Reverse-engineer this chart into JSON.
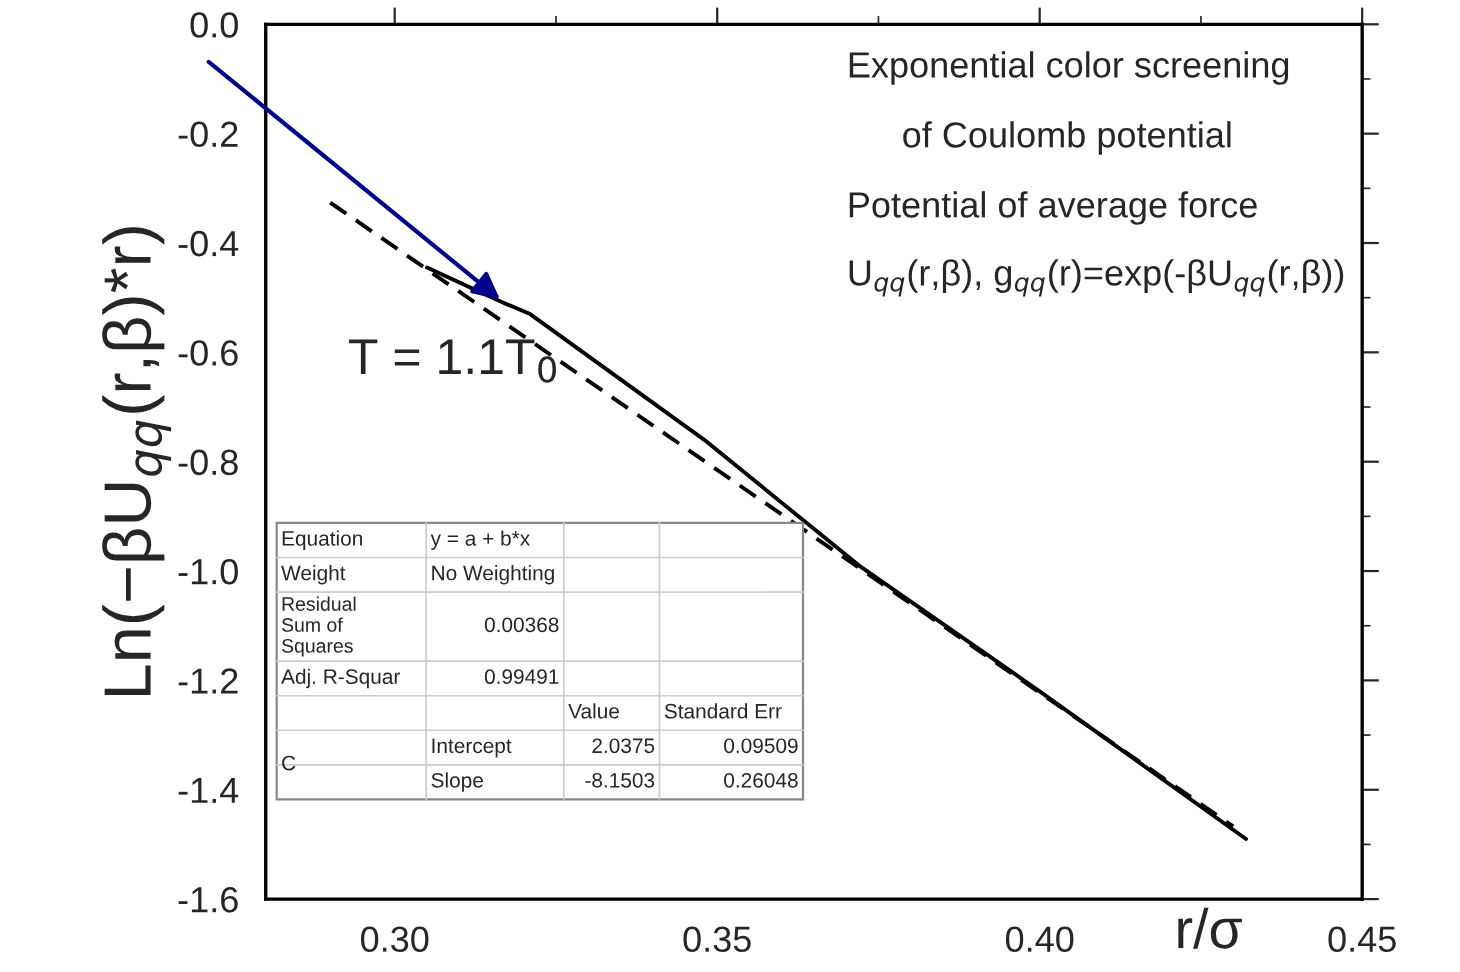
{
  "chart_data": {
    "type": "line",
    "xlabel": "r/σ",
    "ylabel": "Ln(−βU$_{qq}$(r,β)*r)",
    "series": [
      {
        "color": "#000000",
        "line_style": "solid",
        "x": [
          0.305,
          0.317,
          0.321,
          0.348,
          0.372,
          0.4,
          0.432
        ],
        "values": [
          -0.445,
          -0.51,
          -0.53,
          -0.76,
          -0.99,
          -1.22,
          -1.49
        ]
      },
      {
        "color": "#000000",
        "line_style": "dashed",
        "x": [
          0.29,
          0.43
        ],
        "values": [
          -0.326,
          -1.467
        ]
      }
    ],
    "xlim": [
      0.28,
      0.45
    ],
    "ylim": [
      -1.6,
      0.0
    ],
    "xticks": [
      {
        "value": 0.3,
        "label": "0.30"
      },
      0.35,
      {
        "value": 0.4,
        "label": "0.40"
      },
      0.45
    ],
    "yticks": [
      {
        "value": -1.6,
        "label": "-1.6"
      },
      {
        "value": -1.4,
        "label": "-1.4"
      },
      {
        "value": -1.2,
        "label": "-1.2"
      },
      {
        "value": -1.0,
        "label": "-1.0"
      },
      {
        "value": -0.8,
        "label": "-0.8"
      },
      {
        "value": -0.6,
        "label": "-0.6"
      },
      {
        "value": -0.4,
        "label": "-0.4"
      },
      {
        "value": -0.2,
        "label": "-0.2"
      },
      {
        "value": 0.0,
        "label": "0.0"
      }
    ],
    "grid": false,
    "annotations": [
      "Exponential color screening",
      "of Coulomb potential",
      "Potential of average force",
      "U$_{qq}$(r,β), g$_{qq}$(r)=exp(-βU$_{qq}$(r,β))",
      "T = 1.1T$_{0}$",
      "Equation",
      "y = a + b*x",
      "Weight",
      "No Weighting",
      "Residual Sum of Squares",
      "0.00368",
      "Adj. R-Squar",
      "0.99491",
      "Value",
      "Standard Err",
      "C",
      "Intercept",
      "2.0375",
      "0.09509",
      "Slope",
      "-8.1503",
      "0.26048"
    ]
  }
}
